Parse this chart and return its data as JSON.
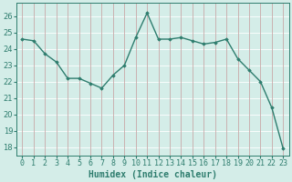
{
  "xlabel": "Humidex (Indice chaleur)",
  "x": [
    0,
    1,
    2,
    3,
    4,
    5,
    6,
    7,
    8,
    9,
    10,
    11,
    12,
    13,
    14,
    15,
    16,
    17,
    18,
    19,
    20,
    21,
    22,
    23
  ],
  "y": [
    24.6,
    24.5,
    23.7,
    23.2,
    22.2,
    22.2,
    21.9,
    21.6,
    22.4,
    23.0,
    24.7,
    26.2,
    24.6,
    24.6,
    24.7,
    24.5,
    24.3,
    24.4,
    24.6,
    23.4,
    22.7,
    22.0,
    20.4,
    17.9
  ],
  "line_color": "#2e7d6e",
  "marker": "D",
  "marker_size": 1.8,
  "bg_color": "#d4ede8",
  "xgrid_color": "#c9a8a8",
  "ygrid_color": "#ffffff",
  "tick_color": "#2e7d6e",
  "label_color": "#2e7d6e",
  "spine_color": "#2e7d6e",
  "ylim": [
    17.5,
    26.8
  ],
  "yticks": [
    18,
    19,
    20,
    21,
    22,
    23,
    24,
    25,
    26
  ],
  "xtick_labels": [
    "0",
    "1",
    "2",
    "3",
    "4",
    "5",
    "6",
    "7",
    "8",
    "9",
    "10",
    "11",
    "12",
    "13",
    "14",
    "15",
    "16",
    "17",
    "18",
    "19",
    "20",
    "21",
    "22",
    "23"
  ],
  "xlabel_fontsize": 7,
  "tick_fontsize": 6,
  "linewidth": 1.0
}
